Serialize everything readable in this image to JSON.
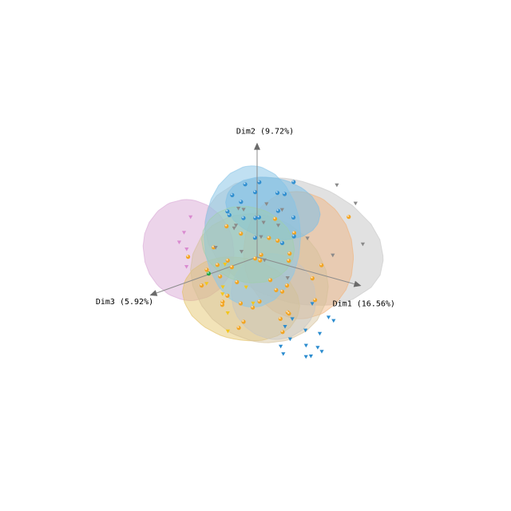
{
  "chart_data": {
    "type": "scatter3d",
    "title": "",
    "axes": {
      "x": {
        "label": "Dim1 (16.56%)"
      },
      "y": {
        "label": "Dim2 (9.72%)"
      },
      "z": {
        "label": "Dim3 (5.92%)"
      }
    },
    "legend": "none",
    "grid": false,
    "ellipsoids": [
      {
        "color": "#c8c8c8",
        "opacity": 0.55,
        "center": [
          1.4,
          0.9,
          -0.2
        ],
        "radii": [
          3.6,
          2.3,
          1.5
        ]
      },
      {
        "color": "#d9a9d6",
        "opacity": 0.5,
        "center": [
          -1.8,
          0.2,
          1.2
        ],
        "radii": [
          1.6,
          1.9,
          1.2
        ]
      },
      {
        "color": "#f2b27a",
        "opacity": 0.45,
        "center": [
          1.4,
          0.3,
          -0.4
        ],
        "radii": [
          1.9,
          2.4,
          1.5
        ]
      },
      {
        "color": "#e3c062",
        "opacity": 0.45,
        "center": [
          -0.5,
          -1.7,
          0.2
        ],
        "radii": [
          2.2,
          1.5,
          1.3
        ]
      },
      {
        "color": "#d4c098",
        "opacity": 0.45,
        "center": [
          0.1,
          -0.8,
          0.0
        ],
        "radii": [
          2.6,
          2.4,
          1.5
        ]
      },
      {
        "color": "#c4c4c4",
        "opacity": 0.4,
        "center": [
          1.0,
          -1.2,
          0.3
        ],
        "radii": [
          1.5,
          1.6,
          1.1
        ]
      },
      {
        "color": "#8cc6e8",
        "opacity": 0.55,
        "center": [
          -0.3,
          0.7,
          -0.1
        ],
        "radii": [
          1.6,
          2.7,
          1.4
        ]
      },
      {
        "color": "#7ec0e6",
        "opacity": 0.55,
        "center": [
          0.2,
          1.8,
          -0.5
        ],
        "radii": [
          1.8,
          1.1,
          1.0
        ]
      },
      {
        "color": "#9fd1a8",
        "opacity": 0.35,
        "center": [
          -0.2,
          0.5,
          0.2
        ],
        "radii": [
          1.7,
          1.4,
          1.1
        ]
      }
    ],
    "series": [
      {
        "color": "#f3a21b",
        "marker": "sphere",
        "points": [
          [
            -0.8,
            -0.5,
            0.3
          ],
          [
            1.1,
            -0.9,
            -0.2
          ],
          [
            0.4,
            0.2,
            0.5
          ],
          [
            -1.5,
            -1.1,
            0.1
          ],
          [
            2.1,
            -0.4,
            -0.3
          ],
          [
            0.2,
            -1.8,
            0.4
          ],
          [
            -0.4,
            -0.2,
            -0.6
          ],
          [
            1.6,
            0.6,
            0.2
          ],
          [
            -1.2,
            0.3,
            0.7
          ],
          [
            0.7,
            -1.3,
            -0.4
          ],
          [
            -2.2,
            -1.6,
            0.2
          ],
          [
            2.6,
            -1.0,
            0.1
          ],
          [
            0.0,
            -0.7,
            0.9
          ],
          [
            -0.9,
            -2.1,
            -0.2
          ],
          [
            1.3,
            -2.0,
            0.3
          ],
          [
            -1.8,
            0.6,
            -0.5
          ],
          [
            0.9,
            1.1,
            0.4
          ],
          [
            -0.2,
            -1.2,
            -0.8
          ],
          [
            1.9,
            -1.5,
            0.6
          ],
          [
            -0.6,
            0.8,
            0.1
          ],
          [
            0.5,
            -0.3,
            -0.9
          ],
          [
            -1.4,
            -0.6,
            0.8
          ],
          [
            2.3,
            0.1,
            -0.5
          ],
          [
            -0.1,
            -2.4,
            0.5
          ],
          [
            1.0,
            0.4,
            0.9
          ],
          [
            -2.0,
            -0.9,
            -0.3
          ],
          [
            0.3,
            -1.6,
            0.2
          ],
          [
            1.5,
            -0.7,
            0.7
          ],
          [
            -0.7,
            -1.5,
            0.6
          ],
          [
            0.8,
            -2.2,
            -0.6
          ],
          [
            -1.1,
            -1.9,
            0.4
          ],
          [
            2.8,
            1.9,
            -1.2
          ],
          [
            -1.6,
            -2.3,
            -0.1
          ],
          [
            0.6,
            0.7,
            -0.3
          ],
          [
            1.7,
            1.4,
            0.1
          ],
          [
            -0.3,
            0.1,
            1.0
          ],
          [
            -2.4,
            -0.4,
            0.6
          ],
          [
            1.2,
            -2.6,
            0.1
          ],
          [
            0.1,
            1.3,
            -0.7
          ],
          [
            -0.5,
            -2.8,
            0.3
          ]
        ]
      },
      {
        "color": "#2b8ccf",
        "marker": "sphere",
        "points": [
          [
            0.3,
            2.4,
            -0.6
          ],
          [
            -0.5,
            2.1,
            0.2
          ],
          [
            0.9,
            2.6,
            -0.3
          ],
          [
            -0.2,
            1.6,
            0.4
          ],
          [
            0.6,
            1.9,
            0.7
          ],
          [
            -0.9,
            2.5,
            -0.4
          ],
          [
            1.2,
            2.2,
            0.3
          ],
          [
            0.0,
            2.9,
            -0.1
          ],
          [
            -0.4,
            1.3,
            -0.5
          ],
          [
            0.8,
            1.5,
            -0.8
          ],
          [
            0.4,
            2.8,
            0.5
          ],
          [
            -0.7,
            1.8,
            0.6
          ],
          [
            1.4,
            1.1,
            -0.2
          ],
          [
            0.2,
            0.9,
            0.3
          ],
          [
            -1.1,
            1.4,
            0.1
          ],
          [
            1.0,
            3.0,
            -0.6
          ],
          [
            -0.3,
            2.6,
            0.8
          ],
          [
            0.7,
            0.6,
            -0.4
          ]
        ]
      },
      {
        "color": "#2b8ccf",
        "marker": "cone",
        "points": [
          [
            2.2,
            -2.4,
            0.8
          ],
          [
            2.5,
            -2.7,
            0.4
          ],
          [
            2.0,
            -3.0,
            0.9
          ],
          [
            2.9,
            -2.2,
            0.2
          ],
          [
            1.6,
            -2.9,
            0.6
          ],
          [
            2.7,
            -1.8,
            -0.4
          ],
          [
            3.1,
            -2.6,
            0.5
          ],
          [
            1.8,
            -2.5,
            -0.3
          ],
          [
            2.4,
            -3.2,
            0.3
          ],
          [
            3.4,
            -1.6,
            0.1
          ],
          [
            1.4,
            -2.3,
            0.2
          ],
          [
            2.1,
            -1.7,
            0.6
          ],
          [
            2.6,
            -3.1,
            -0.2
          ],
          [
            1.9,
            -1.5,
            -0.5
          ],
          [
            3.0,
            -2.9,
            0.7
          ]
        ]
      },
      {
        "color": "#8a8a8a",
        "marker": "cone",
        "points": [
          [
            -0.8,
            1.0,
            0.2
          ],
          [
            0.5,
            1.8,
            -0.6
          ],
          [
            -1.3,
            0.8,
            -0.4
          ],
          [
            1.5,
            0.9,
            -0.7
          ],
          [
            -0.1,
            2.0,
            0.5
          ],
          [
            2.9,
            2.4,
            -1.4
          ],
          [
            3.6,
            1.1,
            -1.0
          ],
          [
            1.9,
            2.8,
            -1.6
          ],
          [
            0.9,
            0.3,
            0.6
          ],
          [
            -0.6,
            0.4,
            -0.8
          ],
          [
            1.3,
            1.7,
            0.4
          ],
          [
            -1.0,
            1.6,
            -0.2
          ],
          [
            2.4,
            0.4,
            -0.9
          ],
          [
            0.1,
            0.5,
            0.8
          ],
          [
            0.6,
            2.3,
            0.2
          ],
          [
            -0.3,
            1.1,
            -0.6
          ],
          [
            1.8,
            -0.2,
            0.5
          ],
          [
            -1.5,
            0.1,
            0.3
          ]
        ]
      },
      {
        "color": "#d98bd0",
        "marker": "cone",
        "points": [
          [
            -1.9,
            0.9,
            1.3
          ],
          [
            -2.4,
            0.3,
            1.0
          ],
          [
            -1.6,
            -0.3,
            1.5
          ],
          [
            -2.1,
            1.3,
            0.8
          ],
          [
            -1.4,
            0.5,
            1.7
          ]
        ]
      },
      {
        "color": "#f3c61b",
        "marker": "cone",
        "points": [
          [
            -0.9,
            -1.2,
            0.6
          ],
          [
            -0.4,
            -2.0,
            0.9
          ],
          [
            -1.3,
            -1.7,
            0.2
          ],
          [
            0.2,
            -0.9,
            0.7
          ],
          [
            -1.7,
            -1.3,
            0.5
          ],
          [
            -0.2,
            -2.6,
            1.1
          ],
          [
            -1.0,
            -0.4,
            0.4
          ],
          [
            0.6,
            -1.4,
            0.8
          ]
        ]
      },
      {
        "color": "#1ea83a",
        "marker": "sphere",
        "points": [
          [
            -1.8,
            -1.0,
            0.3
          ]
        ]
      }
    ]
  }
}
